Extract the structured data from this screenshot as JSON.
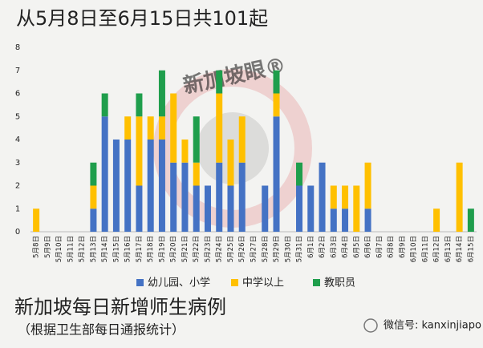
{
  "chart_data": {
    "type": "stacked_bar",
    "title": "从5月8日至6月15日共101起",
    "categories": [
      "5月8日",
      "5月9日",
      "5月10日",
      "5月11日",
      "5月12日",
      "5月13日",
      "5月14日",
      "5月15日",
      "5月16日",
      "5月17日",
      "5月18日",
      "5月19日",
      "5月20日",
      "5月21日",
      "5月22日",
      "5月23日",
      "5月24日",
      "5月25日",
      "5月26日",
      "5月27日",
      "5月28日",
      "5月29日",
      "5月30日",
      "5月31日",
      "6月1日",
      "6月2日",
      "6月3日",
      "6月4日",
      "6月5日",
      "6月6日",
      "6月7日",
      "6月8日",
      "6月9日",
      "6月10日",
      "6月11日",
      "6月12日",
      "6月13日",
      "6月14日",
      "6月15日"
    ],
    "series": [
      {
        "name": "幼儿园、小学",
        "color": "#4472c4",
        "values": [
          0,
          0,
          0,
          0,
          0,
          1,
          5,
          4,
          4,
          2,
          4,
          4,
          3,
          3,
          2,
          2,
          3,
          2,
          3,
          0,
          2,
          5,
          0,
          2,
          2,
          3,
          1,
          1,
          0,
          1,
          0,
          0,
          0,
          0,
          0,
          0,
          0,
          0,
          0
        ]
      },
      {
        "name": "中学以上",
        "color": "#ffc000",
        "values": [
          1,
          0,
          0,
          0,
          0,
          1,
          0,
          0,
          1,
          3,
          1,
          1,
          3,
          1,
          1,
          0,
          3,
          2,
          2,
          0,
          0,
          1,
          0,
          0,
          0,
          0,
          1,
          1,
          2,
          2,
          0,
          0,
          0,
          0,
          0,
          1,
          0,
          3,
          0
        ]
      },
      {
        "name": "教职员",
        "color": "#1f9e4c",
        "values": [
          0,
          0,
          0,
          0,
          0,
          1,
          1,
          0,
          0,
          1,
          0,
          2,
          0,
          0,
          2,
          0,
          1,
          0,
          0,
          0,
          0,
          1,
          0,
          1,
          0,
          0,
          0,
          0,
          0,
          0,
          0,
          0,
          0,
          0,
          0,
          0,
          0,
          0,
          1
        ]
      }
    ],
    "ylim": [
      0,
      8
    ],
    "yticks": [
      0,
      1,
      2,
      3,
      4,
      5,
      6,
      7,
      8
    ],
    "grid": false,
    "watermark": "新加坡眼®",
    "caption": "新加坡每日新增师生病例",
    "subcaption": "（根据卫生部每日通报统计）",
    "wechat": "微信号: kanxinjiapo"
  }
}
